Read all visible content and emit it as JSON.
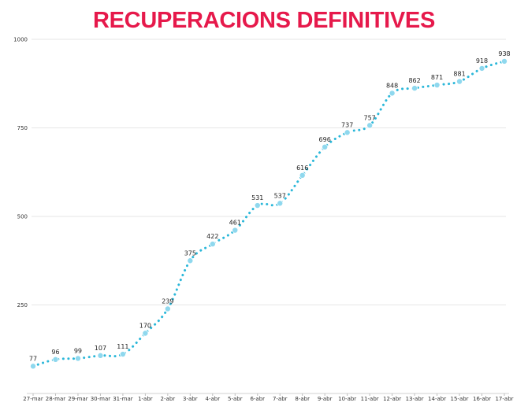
{
  "chart_data": {
    "type": "line",
    "title": "RECUPERACIONS DEFINITIVES",
    "xlabel": "",
    "ylabel": "",
    "categories": [
      "27-mar",
      "28-mar",
      "29-mar",
      "30-mar",
      "31-mar",
      "1-abr",
      "2-abr",
      "3-abr",
      "4-abr",
      "5-abr",
      "6-abr",
      "7-abr",
      "8-abr",
      "9-abr",
      "10-abr",
      "11-abr",
      "12-abr",
      "13-abr",
      "14-abr",
      "15-abr",
      "16-abr",
      "17-abr"
    ],
    "series": [
      {
        "name": "",
        "values": [
          77,
          96,
          99,
          107,
          111,
          170,
          239,
          375,
          422,
          461,
          531,
          537,
          616,
          696,
          737,
          757,
          848,
          862,
          871,
          881,
          918,
          938
        ]
      }
    ],
    "yticks": [
      250,
      500,
      750,
      1000
    ],
    "ylim": [
      0,
      1000
    ],
    "grid": true,
    "legend": "none",
    "colors": {
      "title": "#e6194b",
      "line": "#2ab7d9",
      "marker": "#8fd8ee",
      "grid": "#e6e6e6"
    }
  }
}
